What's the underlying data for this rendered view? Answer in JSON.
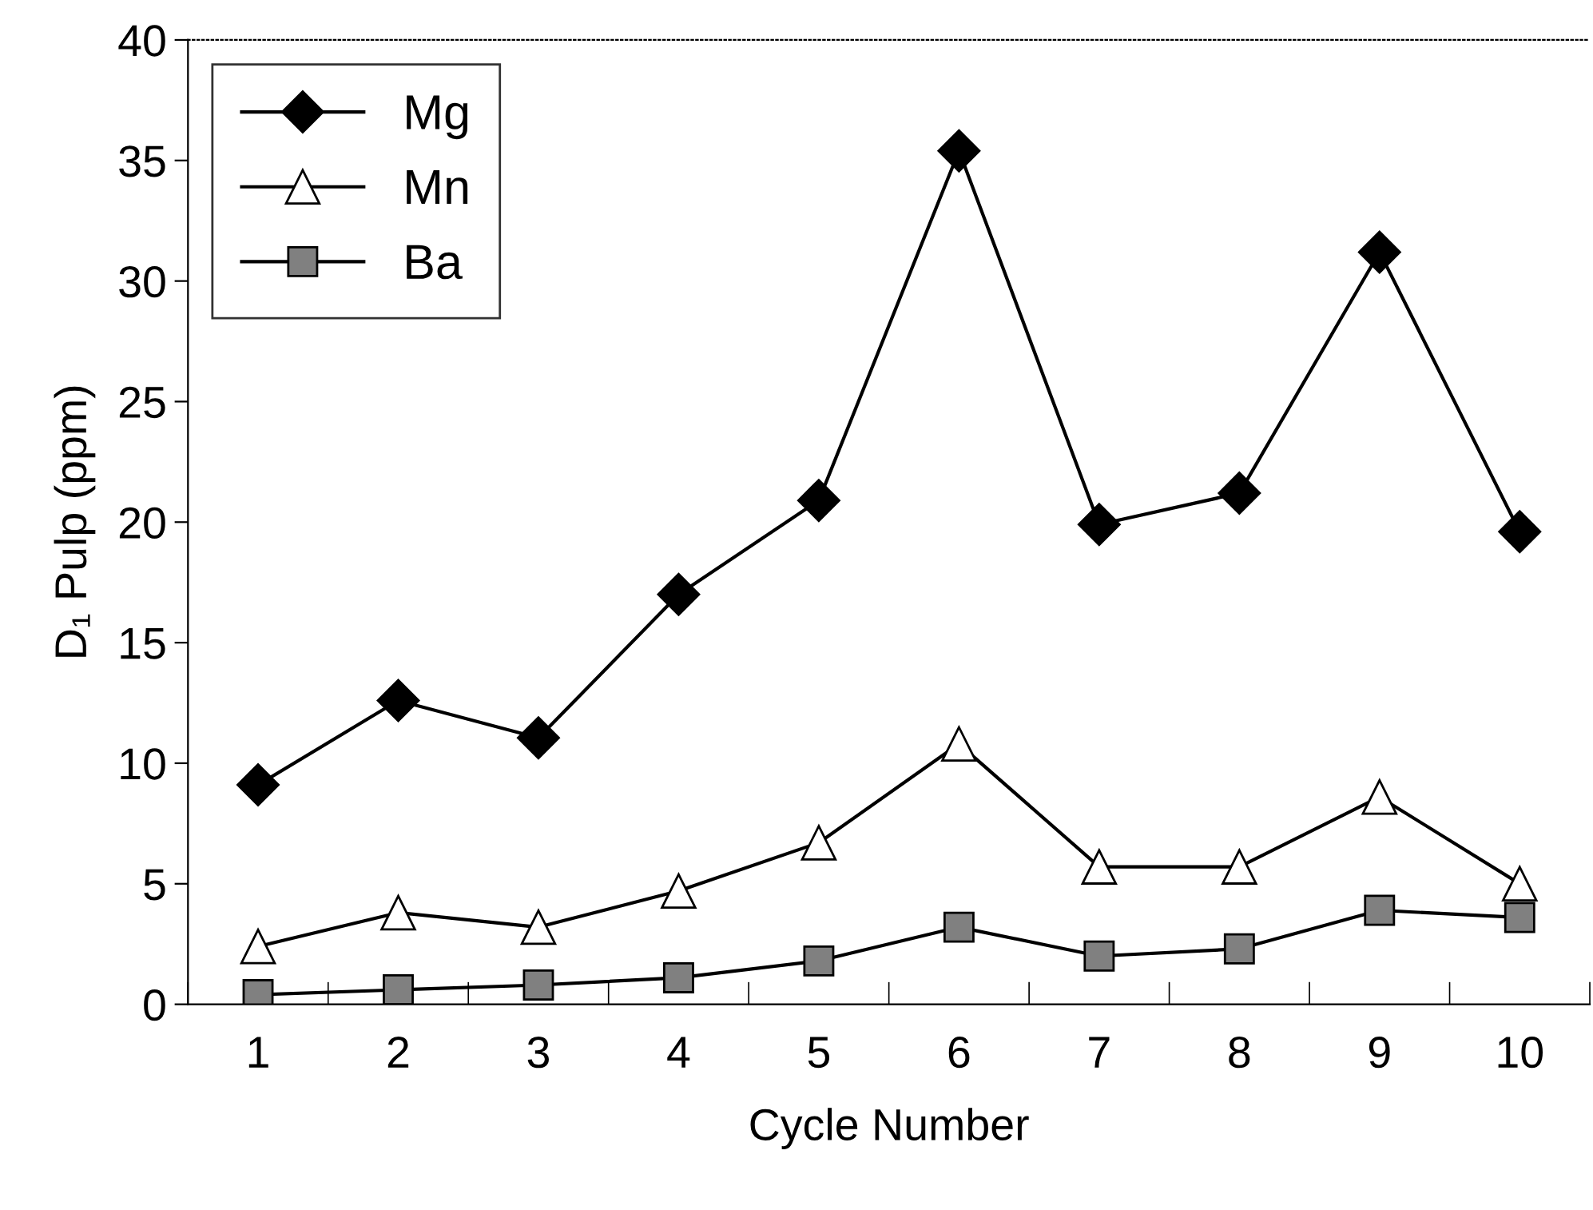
{
  "chart_data": {
    "type": "line",
    "xlabel": "Cycle Number",
    "ylabel": "D₁ Pulp (ppm)",
    "categories": [
      "1",
      "2",
      "3",
      "4",
      "5",
      "6",
      "7",
      "8",
      "9",
      "10"
    ],
    "series": [
      {
        "name": "Mg",
        "color": "#000000",
        "marker": "diamond",
        "values": [
          9.1,
          12.6,
          11.05,
          17.0,
          20.9,
          35.4,
          19.9,
          21.2,
          31.2,
          19.6
        ]
      },
      {
        "name": "Mn",
        "color": "#ffffff",
        "marker": "triangle",
        "values": [
          2.4,
          3.8,
          3.2,
          4.7,
          6.7,
          10.8,
          5.7,
          5.7,
          8.6,
          5.0
        ]
      },
      {
        "name": "Ba",
        "color": "#808080",
        "marker": "square",
        "values": [
          0.4,
          0.6,
          0.8,
          1.1,
          1.8,
          3.2,
          2.0,
          2.3,
          3.9,
          3.6
        ]
      }
    ],
    "ylim": [
      0,
      40
    ],
    "yticks": [
      0,
      5,
      10,
      15,
      20,
      25,
      30,
      35,
      40
    ],
    "grid": false,
    "legend": "top left",
    "line_style": "solid"
  }
}
